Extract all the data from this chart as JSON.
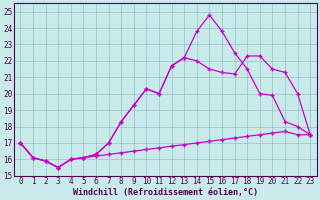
{
  "bg_color": "#c8eaea",
  "grid_color": "#88bbbb",
  "line_color": "#cc00cc",
  "xlabel": "Windchill (Refroidissement éolien,°C)",
  "x_ticks": [
    0,
    1,
    2,
    3,
    4,
    5,
    6,
    7,
    8,
    9,
    10,
    11,
    12,
    13,
    14,
    15,
    16,
    17,
    18,
    19,
    20,
    21,
    22,
    23
  ],
  "y_ticks": [
    15,
    16,
    17,
    18,
    19,
    20,
    21,
    22,
    23,
    24,
    25
  ],
  "ylim": [
    15.0,
    25.5
  ],
  "xlim": [
    -0.5,
    23.5
  ],
  "curves": [
    [
      17.0,
      16.1,
      15.9,
      15.5,
      16.0,
      16.1,
      16.2,
      16.3,
      16.4,
      16.5,
      16.6,
      16.7,
      16.8,
      16.9,
      17.0,
      17.1,
      17.2,
      17.3,
      17.4,
      17.5,
      17.6,
      17.7,
      17.5,
      17.5
    ],
    [
      17.0,
      16.1,
      15.9,
      15.5,
      16.0,
      16.1,
      16.3,
      17.0,
      18.3,
      19.3,
      20.3,
      20.0,
      21.7,
      22.2,
      22.0,
      21.5,
      21.3,
      21.2,
      22.3,
      22.3,
      21.5,
      21.3,
      20.0,
      17.5
    ],
    [
      17.0,
      16.1,
      15.9,
      15.5,
      16.0,
      16.1,
      16.3,
      17.0,
      18.3,
      19.3,
      20.3,
      20.0,
      21.7,
      22.2,
      23.8,
      24.8,
      23.8,
      22.5,
      21.5,
      20.0,
      19.9,
      18.3,
      18.0,
      17.5
    ]
  ],
  "tick_color": "#550055",
  "tick_fontsize": 5.5,
  "xlabel_fontsize": 6.0,
  "linewidth": 0.9,
  "marker": "+",
  "markersize": 3.5,
  "markeredgewidth": 1.0
}
